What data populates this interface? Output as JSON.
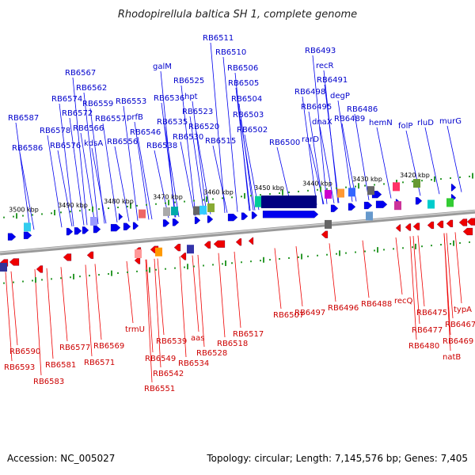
{
  "title": "Rhodopirellula baltica SH 1, complete genome",
  "footer": {
    "accession": "Accession: NC_005027",
    "summary": "Topology: circular; Length: 7,145,576 bp; Genes: 7,405"
  },
  "colors": {
    "forward_gene": "#0000ee",
    "reverse_gene": "#ee0000",
    "forward_label": "#0000cc",
    "reverse_label": "#cc0000",
    "backbone": "#888888",
    "tick": "#2e9a2e"
  },
  "scale_labels": [
    "3500 kbp",
    "3490 kbp",
    "3480 kbp",
    "3470 kbp",
    "3460 kbp",
    "3450 kbp",
    "3440 kbp",
    "3430 kbp",
    "3420 kbp"
  ],
  "forward_genes": [
    "RB6587",
    "RB6586",
    "RB6578",
    "RB6576",
    "RB6574",
    "RB6572",
    "RB6567",
    "RB6566",
    "RB6562",
    "RB6559",
    "kdsA",
    "RB6557",
    "RB6556",
    "RB6553",
    "prfB",
    "RB6546",
    "RB6538",
    "RB6536",
    "RB6535",
    "galM",
    "RB6530",
    "RB6525",
    "hpt",
    "RB6523",
    "RB6520",
    "RB6515",
    "RB6511",
    "RB6510",
    "RB6506",
    "RB6505",
    "RB6504",
    "RB6503",
    "RB6502",
    "RB6500",
    "rarD",
    "dnaX",
    "RB6495",
    "RB6498",
    "recR",
    "RB6491",
    "degP",
    "RB6493",
    "RB6489",
    "RB6486",
    "hemN",
    "folP",
    "rluD",
    "murG"
  ],
  "reverse_genes": [
    "RB6590",
    "RB6593",
    "RB6583",
    "RB6581",
    "RB6577",
    "RB6571",
    "RB6569",
    "trmU",
    "RB6551",
    "RB6549",
    "RB6542",
    "RB6539",
    "RB6534",
    "aas",
    "RB6528",
    "RB6518",
    "RB6517",
    "RB6507",
    "RB6497",
    "RB6496",
    "RB6488",
    "recQ",
    "RB6480",
    "RB6477",
    "RB6475",
    "natB",
    "RB6469",
    "RB6467",
    "typA"
  ]
}
